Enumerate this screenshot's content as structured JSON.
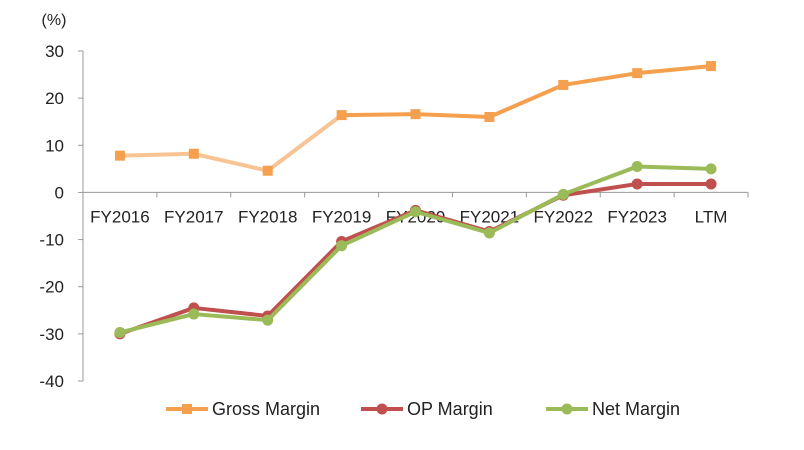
{
  "chart_data": {
    "type": "line",
    "unit_label": "(%)",
    "categories": [
      "FY2016",
      "FY2017",
      "FY2018",
      "FY2019",
      "FY2020",
      "FY2021",
      "FY2022",
      "FY2023",
      "LTM"
    ],
    "yticks": [
      "30",
      "20",
      "10",
      "0",
      "-10",
      "-20",
      "-30",
      "-40"
    ],
    "ylim": [
      -40,
      30
    ],
    "legend_position": "bottom",
    "grid": false,
    "series": [
      {
        "name": "Gross Margin",
        "color": "#F5A04E",
        "light_color": "#F8C493",
        "marker": "square",
        "values": [
          7.8,
          8.2,
          4.6,
          16.4,
          16.6,
          16.0,
          22.8,
          25.3,
          26.8
        ]
      },
      {
        "name": "OP Margin",
        "color": "#C0504D",
        "marker": "circle",
        "values": [
          -30.0,
          -24.5,
          -26.2,
          -10.4,
          -3.8,
          -8.3,
          -0.6,
          1.8,
          1.8
        ]
      },
      {
        "name": "Net Margin",
        "color": "#9BBB59",
        "marker": "circle",
        "values": [
          -29.7,
          -25.8,
          -27.1,
          -11.3,
          -4.1,
          -8.6,
          -0.4,
          5.5,
          5.0
        ]
      }
    ]
  }
}
